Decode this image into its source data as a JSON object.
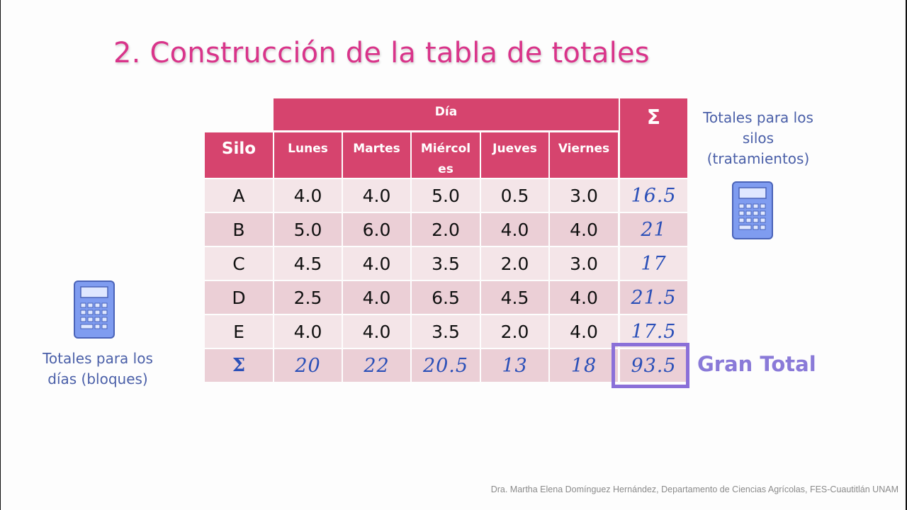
{
  "slide": {
    "title": "2. Construcción de la tabla de totales",
    "footer": "Dra. Martha Elena Domínguez Hernández, Departamento de Ciencias Agrícolas, FES-Cuautitlán UNAM"
  },
  "table": {
    "group_header": "Día",
    "row_header": "Silo",
    "sum_header": "Σ",
    "columns": [
      "Lunes",
      "Martes",
      "Miércol es",
      "Jueves",
      "Viernes"
    ],
    "rows": [
      {
        "label": "A",
        "values": [
          "4.0",
          "4.0",
          "5.0",
          "0.5",
          "3.0"
        ],
        "total": "16.5"
      },
      {
        "label": "B",
        "values": [
          "5.0",
          "6.0",
          "2.0",
          "4.0",
          "4.0"
        ],
        "total": "21"
      },
      {
        "label": "C",
        "values": [
          "4.5",
          "4.0",
          "3.5",
          "2.0",
          "3.0"
        ],
        "total": "17"
      },
      {
        "label": "D",
        "values": [
          "2.5",
          "4.0",
          "6.5",
          "4.5",
          "4.0"
        ],
        "total": "21.5"
      },
      {
        "label": "E",
        "values": [
          "4.0",
          "4.0",
          "3.5",
          "2.0",
          "4.0"
        ],
        "total": "17.5"
      }
    ],
    "totals_row": {
      "label": "Σ",
      "values": [
        "20",
        "22",
        "20.5",
        "13",
        "18"
      ],
      "grand_total": "93.5"
    }
  },
  "annotations": {
    "right_label": "Totales para los silos (tratamientos)",
    "right_label_lines": [
      "Totales para los",
      "silos",
      "(tratamientos)"
    ],
    "left_label_lines": [
      "Totales para los",
      "días (bloques)"
    ],
    "grand_total_label": "Gran Total",
    "icons": [
      "calculator-icon",
      "calculator-icon"
    ]
  },
  "colors": {
    "title": "#d9348a",
    "header_bg": "#d6446e",
    "row_light": "#f4e5e8",
    "row_dark": "#ebcfd6",
    "handwritten": "#2a4fb8",
    "grand_total_box": "#8a6fd8",
    "side_label": "#4a5fa8"
  }
}
